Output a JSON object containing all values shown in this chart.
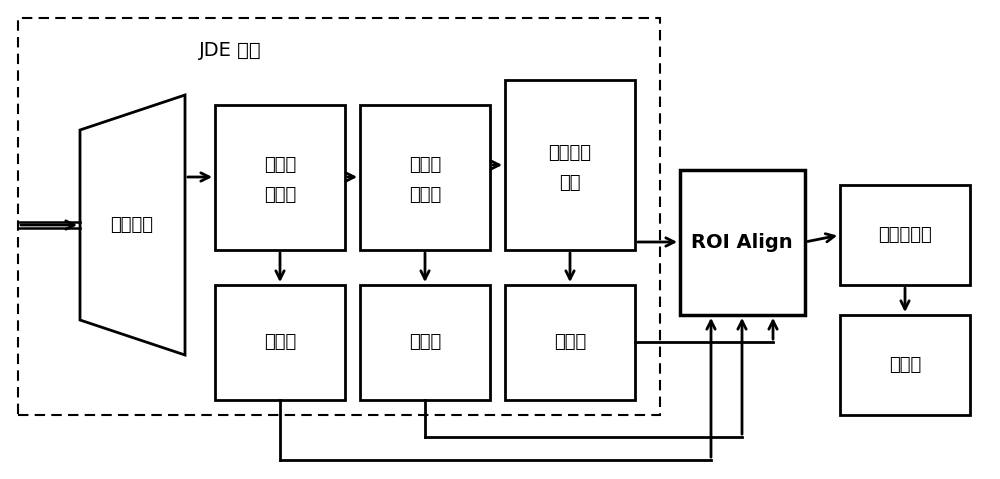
{
  "fig_width": 10.0,
  "fig_height": 4.79,
  "dpi": 100,
  "bg_color": "#ffffff",
  "text_color": "#000000",
  "jde_label": "JDE 模型",
  "backbone_label": "主干网络",
  "large_feat_line1": "大尺度",
  "large_feat_line2": "特征图",
  "mid_feat_line1": "中尺度",
  "mid_feat_line2": "特征图",
  "small_feat_line1": "小尺度特",
  "small_feat_line2": "征图",
  "roi_label": "ROI Align",
  "second_model_label": "第二步模型",
  "pred_head_label": "预测头"
}
